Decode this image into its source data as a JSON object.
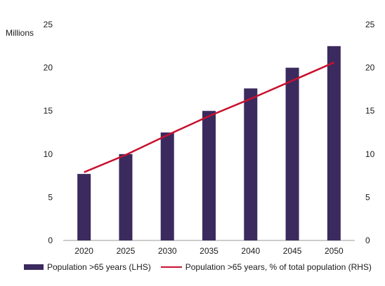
{
  "chart_data": {
    "type": "bar",
    "unit_label": "Millions",
    "categories": [
      "2020",
      "2025",
      "2030",
      "2035",
      "2040",
      "2045",
      "2050"
    ],
    "series": [
      {
        "name": "Population >65 years (LHS)",
        "type": "bar",
        "axis": "left",
        "values": [
          7.7,
          10.0,
          12.5,
          15.0,
          17.6,
          20.0,
          22.5
        ]
      },
      {
        "name": "Population >65 years, % of total population (RHS)",
        "type": "line",
        "axis": "right",
        "values": [
          7.9,
          9.9,
          12.2,
          14.4,
          16.4,
          18.5,
          20.6
        ]
      }
    ],
    "y_left": {
      "ylim": [
        0,
        25
      ],
      "ticks": [
        "0",
        "5",
        "10",
        "15",
        "20",
        "25"
      ]
    },
    "y_right": {
      "ylim": [
        0,
        25
      ],
      "ticks": [
        "0",
        "5",
        "10",
        "15",
        "20",
        "25"
      ]
    },
    "grid": false,
    "legend_position": "bottom",
    "colors": {
      "bar": "#3b2a5e",
      "line": "#c8102e"
    }
  }
}
